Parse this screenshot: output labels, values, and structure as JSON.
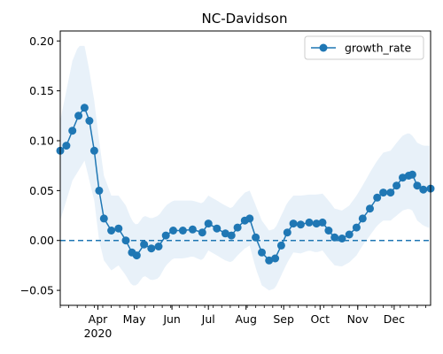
{
  "chart_data": {
    "type": "line",
    "title": "NC-Davidson",
    "xlabel": "",
    "ylabel": "",
    "x_axis": {
      "type": "date",
      "range": [
        "2020-03-01",
        "2020-12-31"
      ],
      "major_ticks": [
        {
          "date": "2020-04-01",
          "label": "Apr",
          "sublabel": "2020"
        },
        {
          "date": "2020-05-01",
          "label": "May"
        },
        {
          "date": "2020-06-01",
          "label": "Jun"
        },
        {
          "date": "2020-07-01",
          "label": "Jul"
        },
        {
          "date": "2020-08-01",
          "label": "Aug"
        },
        {
          "date": "2020-09-01",
          "label": "Sep"
        },
        {
          "date": "2020-10-01",
          "label": "Oct"
        },
        {
          "date": "2020-11-01",
          "label": "Nov"
        },
        {
          "date": "2020-12-01",
          "label": "Dec"
        }
      ],
      "minor_ticks": "weekly"
    },
    "y_axis": {
      "ylim": [
        -0.065,
        0.21
      ],
      "ticks": [
        -0.05,
        0.0,
        0.05,
        0.1,
        0.15,
        0.2
      ],
      "tick_labels": [
        "−0.05",
        "0.00",
        "0.05",
        "0.10",
        "0.15",
        "0.20"
      ]
    },
    "grid": false,
    "legend": {
      "placement": "top-right",
      "entries": [
        "growth_rate"
      ]
    },
    "reference_line": {
      "y": 0.0,
      "style": "dashed",
      "color": "#1f77b4"
    },
    "series": [
      {
        "name": "growth_rate",
        "color": "#1f77b4",
        "marker": "circle",
        "points": [
          {
            "x": "2020-03-01",
            "y": 0.09,
            "lo": 0.02,
            "hi": 0.12
          },
          {
            "x": "2020-03-06",
            "y": 0.095,
            "lo": 0.04,
            "hi": 0.15
          },
          {
            "x": "2020-03-11",
            "y": 0.11,
            "lo": 0.06,
            "hi": 0.18
          },
          {
            "x": "2020-03-16",
            "y": 0.125,
            "lo": 0.07,
            "hi": 0.195
          },
          {
            "x": "2020-03-21",
            "y": 0.133,
            "lo": 0.08,
            "hi": 0.195
          },
          {
            "x": "2020-03-25",
            "y": 0.12,
            "lo": 0.06,
            "hi": 0.17
          },
          {
            "x": "2020-03-29",
            "y": 0.09,
            "lo": 0.04,
            "hi": 0.14
          },
          {
            "x": "2020-04-02",
            "y": 0.05,
            "lo": 0.0,
            "hi": 0.1
          },
          {
            "x": "2020-04-06",
            "y": 0.022,
            "lo": -0.02,
            "hi": 0.065
          },
          {
            "x": "2020-04-12",
            "y": 0.01,
            "lo": -0.03,
            "hi": 0.045
          },
          {
            "x": "2020-04-18",
            "y": 0.012,
            "lo": -0.025,
            "hi": 0.045
          },
          {
            "x": "2020-04-24",
            "y": 0.0,
            "lo": -0.035,
            "hi": 0.035
          },
          {
            "x": "2020-04-29",
            "y": -0.012,
            "lo": -0.045,
            "hi": 0.02
          },
          {
            "x": "2020-05-03",
            "y": -0.015,
            "lo": -0.045,
            "hi": 0.015
          },
          {
            "x": "2020-05-09",
            "y": -0.004,
            "lo": -0.035,
            "hi": 0.025
          },
          {
            "x": "2020-05-15",
            "y": -0.008,
            "lo": -0.04,
            "hi": 0.022
          },
          {
            "x": "2020-05-21",
            "y": -0.006,
            "lo": -0.038,
            "hi": 0.025
          },
          {
            "x": "2020-05-27",
            "y": 0.005,
            "lo": -0.025,
            "hi": 0.035
          },
          {
            "x": "2020-06-02",
            "y": 0.01,
            "lo": -0.018,
            "hi": 0.04
          },
          {
            "x": "2020-06-10",
            "y": 0.01,
            "lo": -0.018,
            "hi": 0.04
          },
          {
            "x": "2020-06-18",
            "y": 0.011,
            "lo": -0.016,
            "hi": 0.04
          },
          {
            "x": "2020-06-26",
            "y": 0.008,
            "lo": -0.02,
            "hi": 0.037
          },
          {
            "x": "2020-07-01",
            "y": 0.017,
            "lo": -0.01,
            "hi": 0.045
          },
          {
            "x": "2020-07-08",
            "y": 0.012,
            "lo": -0.015,
            "hi": 0.04
          },
          {
            "x": "2020-07-15",
            "y": 0.007,
            "lo": -0.02,
            "hi": 0.035
          },
          {
            "x": "2020-07-20",
            "y": 0.005,
            "lo": -0.022,
            "hi": 0.032
          },
          {
            "x": "2020-07-25",
            "y": 0.013,
            "lo": -0.015,
            "hi": 0.04
          },
          {
            "x": "2020-07-31",
            "y": 0.02,
            "lo": -0.008,
            "hi": 0.048
          },
          {
            "x": "2020-08-04",
            "y": 0.022,
            "lo": -0.005,
            "hi": 0.05
          },
          {
            "x": "2020-08-09",
            "y": 0.003,
            "lo": -0.028,
            "hi": 0.035
          },
          {
            "x": "2020-08-14",
            "y": -0.012,
            "lo": -0.045,
            "hi": 0.02
          },
          {
            "x": "2020-08-20",
            "y": -0.02,
            "lo": -0.05,
            "hi": 0.01
          },
          {
            "x": "2020-08-25",
            "y": -0.018,
            "lo": -0.048,
            "hi": 0.012
          },
          {
            "x": "2020-08-30",
            "y": -0.005,
            "lo": -0.035,
            "hi": 0.025
          },
          {
            "x": "2020-09-04",
            "y": 0.008,
            "lo": -0.022,
            "hi": 0.038
          },
          {
            "x": "2020-09-09",
            "y": 0.017,
            "lo": -0.012,
            "hi": 0.045
          },
          {
            "x": "2020-09-15",
            "y": 0.016,
            "lo": -0.013,
            "hi": 0.045
          },
          {
            "x": "2020-09-22",
            "y": 0.018,
            "lo": -0.01,
            "hi": 0.046
          },
          {
            "x": "2020-09-28",
            "y": 0.017,
            "lo": -0.012,
            "hi": 0.046
          },
          {
            "x": "2020-10-03",
            "y": 0.018,
            "lo": -0.01,
            "hi": 0.047
          },
          {
            "x": "2020-10-08",
            "y": 0.01,
            "lo": -0.018,
            "hi": 0.04
          },
          {
            "x": "2020-10-13",
            "y": 0.003,
            "lo": -0.025,
            "hi": 0.032
          },
          {
            "x": "2020-10-19",
            "y": 0.002,
            "lo": -0.026,
            "hi": 0.03
          },
          {
            "x": "2020-10-25",
            "y": 0.006,
            "lo": -0.022,
            "hi": 0.035
          },
          {
            "x": "2020-10-31",
            "y": 0.013,
            "lo": -0.015,
            "hi": 0.045
          },
          {
            "x": "2020-11-05",
            "y": 0.022,
            "lo": -0.005,
            "hi": 0.055
          },
          {
            "x": "2020-11-11",
            "y": 0.032,
            "lo": 0.005,
            "hi": 0.068
          },
          {
            "x": "2020-11-17",
            "y": 0.043,
            "lo": 0.015,
            "hi": 0.08
          },
          {
            "x": "2020-11-22",
            "y": 0.048,
            "lo": 0.02,
            "hi": 0.088
          },
          {
            "x": "2020-11-28",
            "y": 0.048,
            "lo": 0.02,
            "hi": 0.09
          },
          {
            "x": "2020-12-03",
            "y": 0.055,
            "lo": 0.025,
            "hi": 0.098
          },
          {
            "x": "2020-12-08",
            "y": 0.063,
            "lo": 0.03,
            "hi": 0.105
          },
          {
            "x": "2020-12-13",
            "y": 0.065,
            "lo": 0.032,
            "hi": 0.108
          },
          {
            "x": "2020-12-16",
            "y": 0.066,
            "lo": 0.03,
            "hi": 0.105
          },
          {
            "x": "2020-12-20",
            "y": 0.055,
            "lo": 0.02,
            "hi": 0.098
          },
          {
            "x": "2020-12-25",
            "y": 0.051,
            "lo": 0.015,
            "hi": 0.095
          },
          {
            "x": "2020-12-31",
            "y": 0.052,
            "lo": 0.012,
            "hi": 0.095
          }
        ]
      }
    ],
    "band_color": "#d6e6f4"
  }
}
